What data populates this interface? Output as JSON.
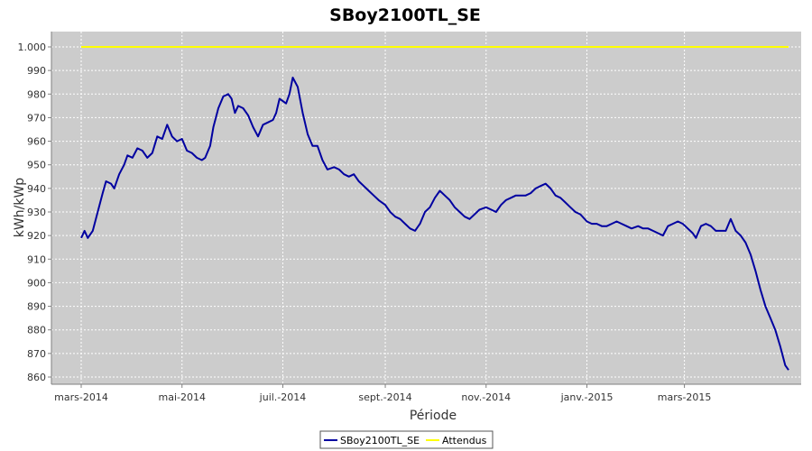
{
  "chart_data": {
    "type": "line",
    "title": "SBoy2100TL_SE",
    "xlabel": "Période",
    "ylabel": "kWh/kWp",
    "x_range": [
      "2014-03-01",
      "2015-05-08"
    ],
    "ylim": [
      856,
      1010
    ],
    "y_ticks": [
      860,
      870,
      880,
      890,
      900,
      910,
      920,
      930,
      940,
      950,
      960,
      970,
      980,
      990,
      1000
    ],
    "y_tick_labels": [
      "860",
      "870",
      "880",
      "890",
      "900",
      "910",
      "920",
      "930",
      "940",
      "950",
      "960",
      "970",
      "980",
      "990",
      "1.000"
    ],
    "x_ticks": [
      {
        "date": "2014-03-01",
        "label": "mars-2014"
      },
      {
        "date": "2014-05-01",
        "label": "mai-2014"
      },
      {
        "date": "2014-07-01",
        "label": "juil.-2014"
      },
      {
        "date": "2014-09-01",
        "label": "sept.-2014"
      },
      {
        "date": "2014-11-01",
        "label": "nov.-2014"
      },
      {
        "date": "2015-01-01",
        "label": "janv.-2015"
      },
      {
        "date": "2015-03-01",
        "label": "mars-2015"
      }
    ],
    "grid": true,
    "legend_position": "bottom-center",
    "plot_background": "#cccccc",
    "series": [
      {
        "name": "SBoy2100TL_SE",
        "color": "#0000a0",
        "points": [
          [
            "2014-03-01",
            919
          ],
          [
            "2014-03-03",
            922
          ],
          [
            "2014-03-05",
            919
          ],
          [
            "2014-03-08",
            922
          ],
          [
            "2014-03-11",
            930
          ],
          [
            "2014-03-14",
            938
          ],
          [
            "2014-03-16",
            943
          ],
          [
            "2014-03-19",
            942
          ],
          [
            "2014-03-21",
            940
          ],
          [
            "2014-03-24",
            946
          ],
          [
            "2014-03-27",
            950
          ],
          [
            "2014-03-29",
            954
          ],
          [
            "2014-04-01",
            953
          ],
          [
            "2014-04-04",
            957
          ],
          [
            "2014-04-07",
            956
          ],
          [
            "2014-04-10",
            953
          ],
          [
            "2014-04-13",
            955
          ],
          [
            "2014-04-16",
            962
          ],
          [
            "2014-04-19",
            961
          ],
          [
            "2014-04-22",
            967
          ],
          [
            "2014-04-25",
            962
          ],
          [
            "2014-04-28",
            960
          ],
          [
            "2014-05-01",
            961
          ],
          [
            "2014-05-04",
            956
          ],
          [
            "2014-05-07",
            955
          ],
          [
            "2014-05-10",
            953
          ],
          [
            "2014-05-13",
            952
          ],
          [
            "2014-05-15",
            953
          ],
          [
            "2014-05-18",
            958
          ],
          [
            "2014-05-20",
            966
          ],
          [
            "2014-05-23",
            974
          ],
          [
            "2014-05-26",
            979
          ],
          [
            "2014-05-29",
            980
          ],
          [
            "2014-05-31",
            978
          ],
          [
            "2014-06-02",
            972
          ],
          [
            "2014-06-04",
            975
          ],
          [
            "2014-06-07",
            974
          ],
          [
            "2014-06-10",
            971
          ],
          [
            "2014-06-13",
            966
          ],
          [
            "2014-06-16",
            962
          ],
          [
            "2014-06-19",
            967
          ],
          [
            "2014-06-22",
            968
          ],
          [
            "2014-06-25",
            969
          ],
          [
            "2014-06-27",
            972
          ],
          [
            "2014-06-29",
            978
          ],
          [
            "2014-07-01",
            977
          ],
          [
            "2014-07-03",
            976
          ],
          [
            "2014-07-05",
            980
          ],
          [
            "2014-07-07",
            987
          ],
          [
            "2014-07-10",
            983
          ],
          [
            "2014-07-13",
            972
          ],
          [
            "2014-07-16",
            963
          ],
          [
            "2014-07-19",
            958
          ],
          [
            "2014-07-22",
            958
          ],
          [
            "2014-07-25",
            952
          ],
          [
            "2014-07-28",
            948
          ],
          [
            "2014-08-01",
            949
          ],
          [
            "2014-08-04",
            948
          ],
          [
            "2014-08-07",
            946
          ],
          [
            "2014-08-10",
            945
          ],
          [
            "2014-08-13",
            946
          ],
          [
            "2014-08-16",
            943
          ],
          [
            "2014-08-19",
            941
          ],
          [
            "2014-08-22",
            939
          ],
          [
            "2014-08-25",
            937
          ],
          [
            "2014-08-28",
            935
          ],
          [
            "2014-09-01",
            933
          ],
          [
            "2014-09-04",
            930
          ],
          [
            "2014-09-07",
            928
          ],
          [
            "2014-09-10",
            927
          ],
          [
            "2014-09-13",
            925
          ],
          [
            "2014-09-16",
            923
          ],
          [
            "2014-09-19",
            922
          ],
          [
            "2014-09-22",
            925
          ],
          [
            "2014-09-25",
            930
          ],
          [
            "2014-09-28",
            932
          ],
          [
            "2014-10-01",
            936
          ],
          [
            "2014-10-04",
            939
          ],
          [
            "2014-10-07",
            937
          ],
          [
            "2014-10-10",
            935
          ],
          [
            "2014-10-13",
            932
          ],
          [
            "2014-10-16",
            930
          ],
          [
            "2014-10-19",
            928
          ],
          [
            "2014-10-22",
            927
          ],
          [
            "2014-10-25",
            929
          ],
          [
            "2014-10-28",
            931
          ],
          [
            "2014-11-01",
            932
          ],
          [
            "2014-11-04",
            931
          ],
          [
            "2014-11-07",
            930
          ],
          [
            "2014-11-10",
            933
          ],
          [
            "2014-11-13",
            935
          ],
          [
            "2014-11-16",
            936
          ],
          [
            "2014-11-19",
            937
          ],
          [
            "2014-11-22",
            937
          ],
          [
            "2014-11-25",
            937
          ],
          [
            "2014-11-28",
            938
          ],
          [
            "2014-12-01",
            940
          ],
          [
            "2014-12-04",
            941
          ],
          [
            "2014-12-07",
            942
          ],
          [
            "2014-12-10",
            940
          ],
          [
            "2014-12-13",
            937
          ],
          [
            "2014-12-16",
            936
          ],
          [
            "2014-12-19",
            934
          ],
          [
            "2014-12-22",
            932
          ],
          [
            "2014-12-25",
            930
          ],
          [
            "2014-12-28",
            929
          ],
          [
            "2015-01-01",
            926
          ],
          [
            "2015-01-04",
            925
          ],
          [
            "2015-01-07",
            925
          ],
          [
            "2015-01-10",
            924
          ],
          [
            "2015-01-13",
            924
          ],
          [
            "2015-01-16",
            925
          ],
          [
            "2015-01-19",
            926
          ],
          [
            "2015-01-22",
            925
          ],
          [
            "2015-01-25",
            924
          ],
          [
            "2015-01-28",
            923
          ],
          [
            "2015-02-01",
            924
          ],
          [
            "2015-02-04",
            923
          ],
          [
            "2015-02-07",
            923
          ],
          [
            "2015-02-10",
            922
          ],
          [
            "2015-02-13",
            921
          ],
          [
            "2015-02-16",
            920
          ],
          [
            "2015-02-19",
            924
          ],
          [
            "2015-02-22",
            925
          ],
          [
            "2015-02-25",
            926
          ],
          [
            "2015-02-28",
            925
          ],
          [
            "2015-03-03",
            923
          ],
          [
            "2015-03-06",
            921
          ],
          [
            "2015-03-08",
            919
          ],
          [
            "2015-03-11",
            924
          ],
          [
            "2015-03-14",
            925
          ],
          [
            "2015-03-17",
            924
          ],
          [
            "2015-03-20",
            922
          ],
          [
            "2015-03-23",
            922
          ],
          [
            "2015-03-26",
            922
          ],
          [
            "2015-03-29",
            927
          ],
          [
            "2015-04-01",
            922
          ],
          [
            "2015-04-04",
            920
          ],
          [
            "2015-04-07",
            917
          ],
          [
            "2015-04-10",
            912
          ],
          [
            "2015-04-13",
            905
          ],
          [
            "2015-04-16",
            897
          ],
          [
            "2015-04-19",
            890
          ],
          [
            "2015-04-22",
            885
          ],
          [
            "2015-04-25",
            880
          ],
          [
            "2015-04-28",
            873
          ],
          [
            "2015-05-01",
            865
          ],
          [
            "2015-05-03",
            863
          ]
        ]
      },
      {
        "name": "Attendus",
        "color": "#ffff00",
        "points": [
          [
            "2014-03-01",
            1000
          ],
          [
            "2015-05-03",
            1000
          ]
        ]
      }
    ]
  }
}
